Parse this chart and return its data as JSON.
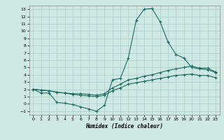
{
  "xlabel": "Humidex (Indice chaleur)",
  "bg_color": "#cee8e4",
  "grid_color": "#aaccc8",
  "line_color": "#1a6b60",
  "xlim": [
    -0.5,
    23.5
  ],
  "ylim": [
    -1.5,
    13.5
  ],
  "yticks": [
    -1,
    0,
    1,
    2,
    3,
    4,
    5,
    6,
    7,
    8,
    9,
    10,
    11,
    12,
    13
  ],
  "xticks": [
    0,
    1,
    2,
    3,
    4,
    5,
    6,
    7,
    8,
    9,
    10,
    11,
    12,
    13,
    14,
    15,
    16,
    17,
    18,
    19,
    20,
    21,
    22,
    23
  ],
  "line1_x": [
    0,
    1,
    2,
    3,
    4,
    5,
    6,
    7,
    8,
    9,
    10,
    11,
    12,
    13,
    14,
    15,
    16,
    17,
    18,
    19,
    20,
    21,
    22,
    23
  ],
  "line1_y": [
    2,
    1.5,
    1.5,
    0.2,
    0.1,
    -0.1,
    -0.4,
    -0.7,
    -1.0,
    -0.2,
    3.3,
    3.5,
    6.3,
    11.5,
    13.0,
    13.1,
    11.3,
    8.5,
    6.8,
    6.3,
    5.0,
    4.8,
    4.7,
    4.3
  ],
  "line2_x": [
    0,
    1,
    2,
    3,
    4,
    5,
    6,
    7,
    8,
    9,
    10,
    11,
    12,
    13,
    14,
    15,
    16,
    17,
    18,
    19,
    20,
    21,
    22,
    23
  ],
  "line2_y": [
    2,
    1.9,
    1.8,
    1.6,
    1.5,
    1.4,
    1.4,
    1.3,
    1.2,
    1.4,
    2.2,
    2.7,
    3.3,
    3.5,
    3.8,
    4.0,
    4.3,
    4.6,
    4.8,
    5.0,
    5.2,
    4.9,
    4.9,
    4.4
  ],
  "line3_x": [
    0,
    1,
    2,
    3,
    4,
    5,
    6,
    7,
    8,
    9,
    10,
    11,
    12,
    13,
    14,
    15,
    16,
    17,
    18,
    19,
    20,
    21,
    22,
    23
  ],
  "line3_y": [
    2,
    1.9,
    1.8,
    1.6,
    1.5,
    1.3,
    1.2,
    1.1,
    1.0,
    1.2,
    1.8,
    2.2,
    2.7,
    2.9,
    3.1,
    3.3,
    3.5,
    3.7,
    3.9,
    4.0,
    4.1,
    3.9,
    3.9,
    3.6
  ]
}
